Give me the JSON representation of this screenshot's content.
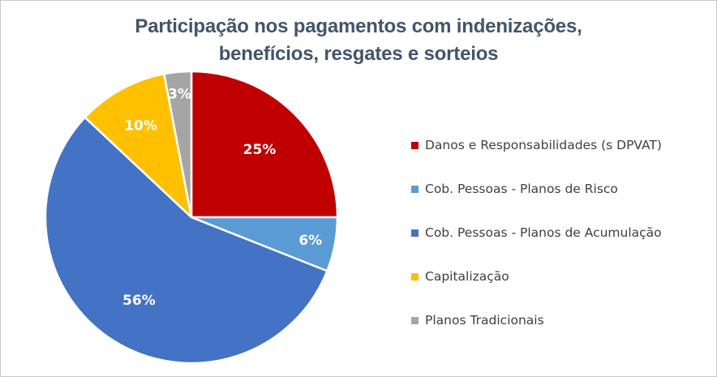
{
  "chart_data": {
    "type": "pie",
    "title_lines": [
      "Participação  nos pagamentos com indenizações,",
      "benefícios, resgates e sorteios"
    ],
    "slices": [
      {
        "name": "Danos e Responsabilidades (s DPVAT)",
        "value": 25,
        "label": "25%",
        "color": "#c00000"
      },
      {
        "name": "Cob. Pessoas - Planos de Risco",
        "value": 6,
        "label": "6%",
        "color": "#5b9bd5"
      },
      {
        "name": "Cob. Pessoas - Planos de Acumulação",
        "value": 56,
        "label": "56%",
        "color": "#4472c4"
      },
      {
        "name": "Capitalização",
        "value": 10,
        "label": "10%",
        "color": "#ffc000"
      },
      {
        "name": "Planos Tradicionais",
        "value": 3,
        "label": "3%",
        "color": "#a5a5a5"
      }
    ],
    "legend_position": "right",
    "start": "top, clockwise"
  }
}
